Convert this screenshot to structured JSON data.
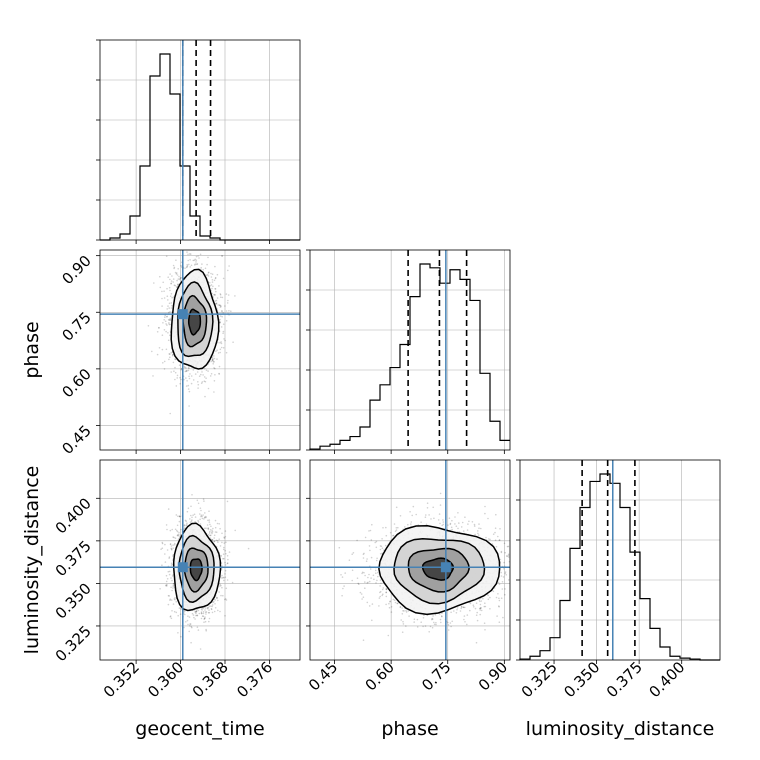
{
  "chart_data": {
    "type": "corner",
    "title": "",
    "parameters": [
      {
        "name": "geocent_time",
        "label": "geocent_time",
        "range": [
          0.3455,
          0.3815
        ],
        "ticks": [
          0.352,
          0.36,
          0.368,
          0.376
        ],
        "tick_labels": [
          "0.352",
          "0.360",
          "0.368",
          "0.376"
        ],
        "truth": 0.3604,
        "quantiles": [
          0.3604,
          0.3628,
          0.3654
        ],
        "hist_bin_start": 0.3455,
        "hist_bin_width": 0.0018,
        "hist_values": [
          0,
          0.01,
          0.03,
          0.12,
          0.37,
          0.82,
          0.93,
          0.73,
          0.37,
          0.12,
          0.02,
          0.01,
          0,
          0,
          0,
          0,
          0,
          0,
          0,
          0
        ]
      },
      {
        "name": "phase",
        "label": "phase",
        "range": [
          0.385,
          0.915
        ],
        "ticks": [
          0.45,
          0.6,
          0.75,
          0.9
        ],
        "tick_labels": [
          "0.45",
          "0.60",
          "0.75",
          "0.90"
        ],
        "truth": 0.745,
        "quantiles": [
          0.645,
          0.728,
          0.8
        ],
        "hist_bin_start": 0.385,
        "hist_bin_width": 0.0265,
        "hist_values": [
          0.005,
          0.02,
          0.03,
          0.05,
          0.07,
          0.12,
          0.26,
          0.34,
          0.43,
          0.55,
          0.8,
          0.97,
          0.95,
          0.87,
          0.94,
          0.89,
          0.78,
          0.4,
          0.15,
          0.05
        ]
      },
      {
        "name": "luminosity_distance",
        "label": "luminosity_distance",
        "range": [
          0.305,
          0.4225
        ],
        "ticks": [
          0.325,
          0.35,
          0.375,
          0.4
        ],
        "tick_labels": [
          "0.325",
          "0.350",
          "0.375",
          "0.400"
        ],
        "truth": 0.3595,
        "quantiles": [
          0.3415,
          0.3565,
          0.3725
        ],
        "hist_bin_start": 0.305,
        "hist_bin_width": 0.005875,
        "hist_values": [
          0.005,
          0.02,
          0.05,
          0.12,
          0.32,
          0.6,
          0.82,
          0.96,
          1.0,
          0.95,
          0.82,
          0.58,
          0.33,
          0.17,
          0.07,
          0.02,
          0.01,
          0.005,
          0,
          0
        ]
      }
    ],
    "pairs": [
      {
        "x": "geocent_time",
        "y": "phase",
        "center": [
          0.3625,
          0.725
        ],
        "sd": [
          0.0021,
          0.065
        ]
      },
      {
        "x": "geocent_time",
        "y": "luminosity_distance",
        "center": [
          0.3628,
          0.3585
        ],
        "sd": [
          0.0021,
          0.0125
        ]
      },
      {
        "x": "phase",
        "y": "luminosity_distance",
        "center": [
          0.725,
          0.3585
        ],
        "sd": [
          0.08,
          0.0125
        ]
      }
    ],
    "truth_color": "#4682b4",
    "quantile_line_style": "dashed",
    "grid": true
  }
}
